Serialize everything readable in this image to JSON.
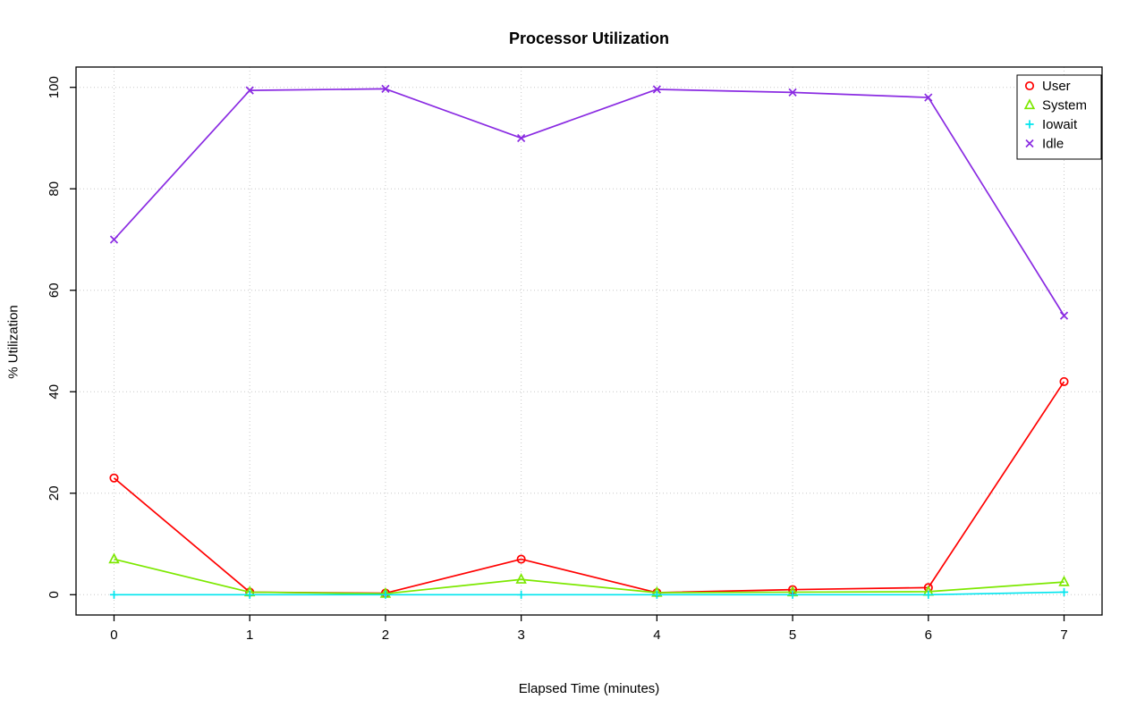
{
  "title": "Processor Utilization",
  "chart_data": {
    "type": "line",
    "title": "Processor Utilization",
    "xlabel": "Elapsed Time (minutes)",
    "ylabel": "% Utilization",
    "x": [
      0,
      1,
      2,
      3,
      4,
      5,
      6,
      7
    ],
    "xlim": [
      0,
      7
    ],
    "ylim": [
      0,
      100
    ],
    "xticks": [
      0,
      1,
      2,
      3,
      4,
      5,
      6,
      7
    ],
    "yticks": [
      0,
      20,
      40,
      60,
      80,
      100
    ],
    "grid": true,
    "grid_style": "dotted",
    "legend_position": "top-right",
    "legend_entries": [
      "User",
      "System",
      "Iowait",
      "Idle"
    ],
    "series": [
      {
        "name": "User",
        "color": "#FF0000",
        "marker": "circle",
        "values": [
          23,
          0.5,
          0.3,
          7,
          0.4,
          1,
          1.4,
          42
        ]
      },
      {
        "name": "System",
        "color": "#7CE800",
        "marker": "triangle",
        "values": [
          7,
          0.5,
          0.2,
          3,
          0.4,
          0.5,
          0.6,
          2.5
        ]
      },
      {
        "name": "Iowait",
        "color": "#00E5EE",
        "marker": "plus",
        "values": [
          0,
          0,
          0,
          0,
          0,
          0,
          0,
          0.5
        ]
      },
      {
        "name": "Idle",
        "color": "#8A2BE2",
        "marker": "x",
        "values": [
          70,
          99.4,
          99.7,
          90,
          99.6,
          99,
          98,
          55
        ]
      }
    ],
    "colors": {
      "axis": "#000000",
      "grid": "#C8C8C8",
      "background": "#FFFFFF",
      "text": "#000000"
    }
  }
}
